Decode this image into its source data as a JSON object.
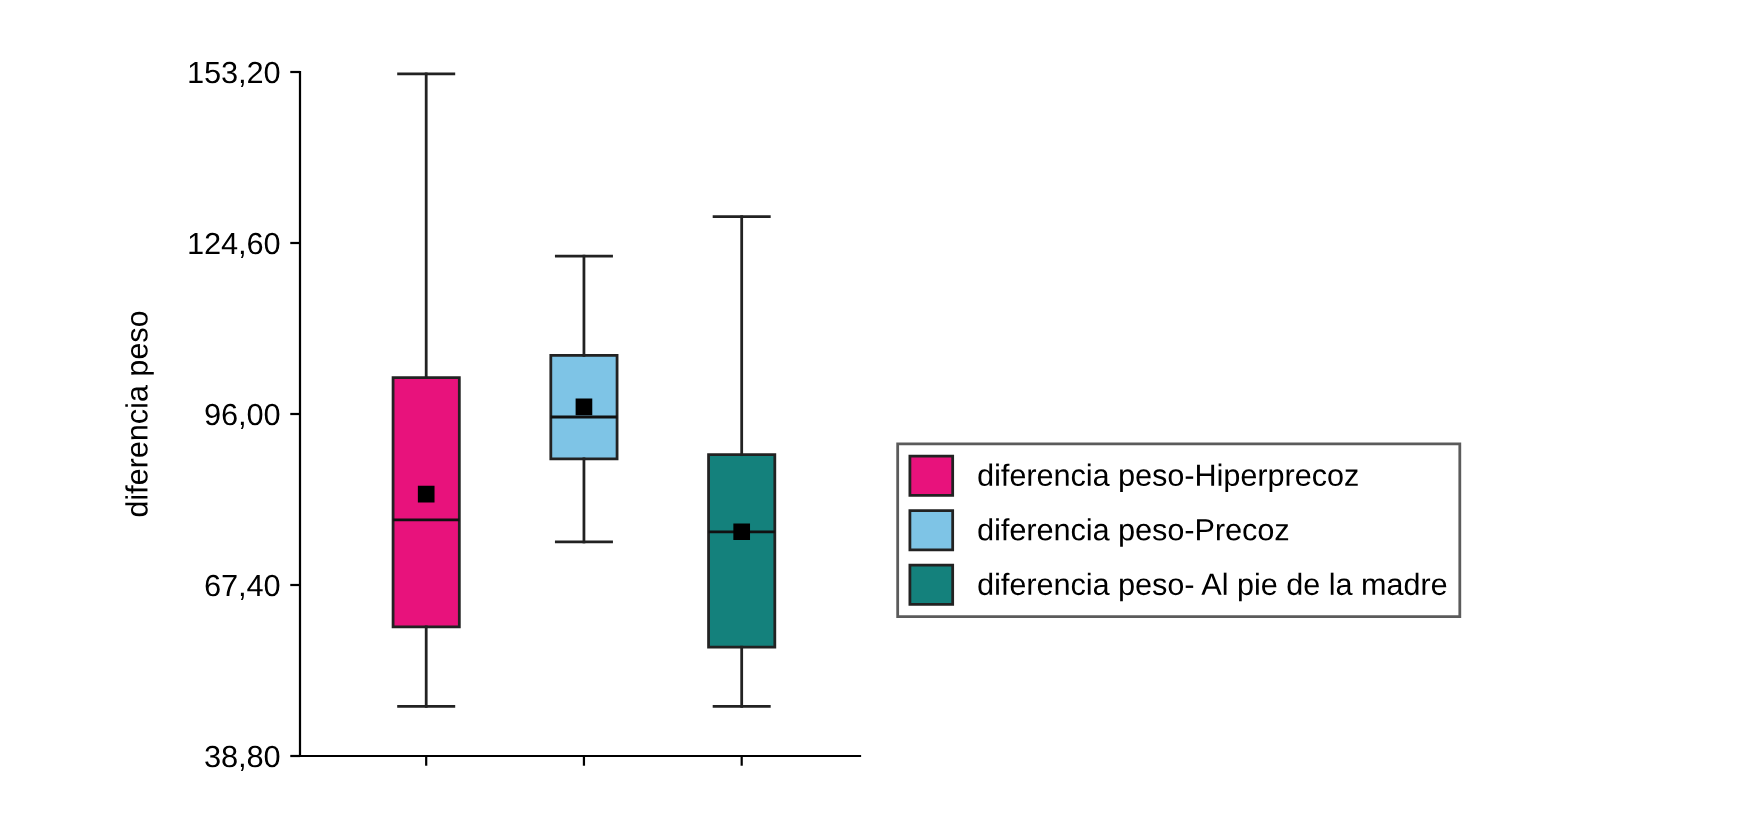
{
  "chart_data": {
    "type": "box",
    "ylabel": "diferencia peso",
    "categories": [
      null,
      null,
      null
    ],
    "series": [
      {
        "name": "diferencia peso-Hiperprecoz",
        "color": "#e8127c",
        "boxes": [
          {
            "low": 47.1,
            "q1": 60.4,
            "median": 78.3,
            "q3": 102.1,
            "high": 152.9,
            "mean": 82.6
          },
          null,
          null
        ]
      },
      {
        "name": "diferencia peso-Precoz",
        "color": "#7ec4e6",
        "boxes": [
          null,
          {
            "low": 74.6,
            "q1": 88.5,
            "median": 95.5,
            "q3": 105.8,
            "high": 122.4,
            "mean": 97.2
          },
          null
        ]
      },
      {
        "name": "diferencia peso- Al pie de la madre",
        "color": "#14817c",
        "boxes": [
          null,
          null,
          {
            "low": 47.1,
            "q1": 57.0,
            "median": 76.3,
            "q3": 89.2,
            "high": 129.0,
            "mean": 76.3
          }
        ]
      }
    ],
    "ylim": [
      38.8,
      153.2
    ],
    "yticks": [
      {
        "value": 38.8,
        "label": "38,80"
      },
      {
        "value": 67.4,
        "label": "67,40"
      },
      {
        "value": 96.0,
        "label": "96,00"
      },
      {
        "value": 124.6,
        "label": "124,60"
      },
      {
        "value": 153.2,
        "label": "153,20"
      }
    ],
    "grid": false,
    "legend": "right",
    "marker": "square"
  }
}
